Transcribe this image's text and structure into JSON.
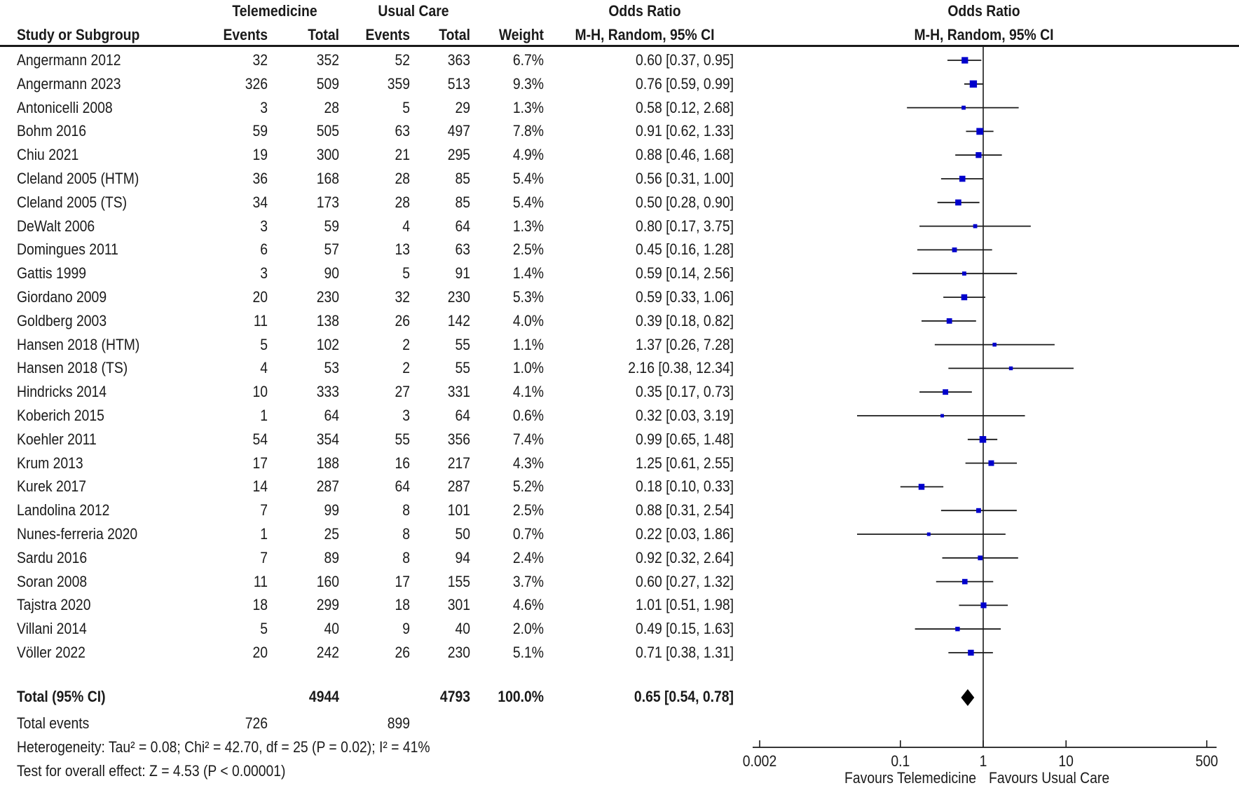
{
  "header": {
    "group1": "Telemedicine",
    "group2": "Usual Care",
    "or_title": "Odds Ratio",
    "plot_title": "Odds Ratio",
    "col_study": "Study or Subgroup",
    "col_events1": "Events",
    "col_total1": "Total",
    "col_events2": "Events",
    "col_total2": "Total",
    "col_weight": "Weight",
    "col_method": "M-H, Random, 95% CI",
    "plot_method": "M-H, Random, 95% CI"
  },
  "studies": [
    {
      "name": "Angermann 2012",
      "e1": "32",
      "n1": "352",
      "e2": "52",
      "n2": "363",
      "weight": "6.7%",
      "ci_text": "0.60 [0.37, 0.95]"
    },
    {
      "name": "Angermann 2023",
      "e1": "326",
      "n1": "509",
      "e2": "359",
      "n2": "513",
      "weight": "9.3%",
      "ci_text": "0.76 [0.59, 0.99]"
    },
    {
      "name": "Antonicelli 2008",
      "e1": "3",
      "n1": "28",
      "e2": "5",
      "n2": "29",
      "weight": "1.3%",
      "ci_text": "0.58 [0.12, 2.68]"
    },
    {
      "name": "Bohm 2016",
      "e1": "59",
      "n1": "505",
      "e2": "63",
      "n2": "497",
      "weight": "7.8%",
      "ci_text": "0.91 [0.62, 1.33]"
    },
    {
      "name": "Chiu 2021",
      "e1": "19",
      "n1": "300",
      "e2": "21",
      "n2": "295",
      "weight": "4.9%",
      "ci_text": "0.88 [0.46, 1.68]"
    },
    {
      "name": "Cleland 2005 (HTM)",
      "e1": "36",
      "n1": "168",
      "e2": "28",
      "n2": "85",
      "weight": "5.4%",
      "ci_text": "0.56 [0.31, 1.00]"
    },
    {
      "name": "Cleland 2005 (TS)",
      "e1": "34",
      "n1": "173",
      "e2": "28",
      "n2": "85",
      "weight": "5.4%",
      "ci_text": "0.50 [0.28, 0.90]"
    },
    {
      "name": "DeWalt 2006",
      "e1": "3",
      "n1": "59",
      "e2": "4",
      "n2": "64",
      "weight": "1.3%",
      "ci_text": "0.80 [0.17, 3.75]"
    },
    {
      "name": "Domingues 2011",
      "e1": "6",
      "n1": "57",
      "e2": "13",
      "n2": "63",
      "weight": "2.5%",
      "ci_text": "0.45 [0.16, 1.28]"
    },
    {
      "name": "Gattis 1999",
      "e1": "3",
      "n1": "90",
      "e2": "5",
      "n2": "91",
      "weight": "1.4%",
      "ci_text": "0.59 [0.14, 2.56]"
    },
    {
      "name": "Giordano 2009",
      "e1": "20",
      "n1": "230",
      "e2": "32",
      "n2": "230",
      "weight": "5.3%",
      "ci_text": "0.59 [0.33, 1.06]"
    },
    {
      "name": "Goldberg 2003",
      "e1": "11",
      "n1": "138",
      "e2": "26",
      "n2": "142",
      "weight": "4.0%",
      "ci_text": "0.39 [0.18, 0.82]"
    },
    {
      "name": "Hansen 2018 (HTM)",
      "e1": "5",
      "n1": "102",
      "e2": "2",
      "n2": "55",
      "weight": "1.1%",
      "ci_text": "1.37 [0.26, 7.28]"
    },
    {
      "name": "Hansen 2018 (TS)",
      "e1": "4",
      "n1": "53",
      "e2": "2",
      "n2": "55",
      "weight": "1.0%",
      "ci_text": "2.16 [0.38, 12.34]"
    },
    {
      "name": "Hindricks 2014",
      "e1": "10",
      "n1": "333",
      "e2": "27",
      "n2": "331",
      "weight": "4.1%",
      "ci_text": "0.35 [0.17, 0.73]"
    },
    {
      "name": "Koberich 2015",
      "e1": "1",
      "n1": "64",
      "e2": "3",
      "n2": "64",
      "weight": "0.6%",
      "ci_text": "0.32 [0.03, 3.19]"
    },
    {
      "name": "Koehler 2011",
      "e1": "54",
      "n1": "354",
      "e2": "55",
      "n2": "356",
      "weight": "7.4%",
      "ci_text": "0.99 [0.65, 1.48]"
    },
    {
      "name": "Krum 2013",
      "e1": "17",
      "n1": "188",
      "e2": "16",
      "n2": "217",
      "weight": "4.3%",
      "ci_text": "1.25 [0.61, 2.55]"
    },
    {
      "name": "Kurek 2017",
      "e1": "14",
      "n1": "287",
      "e2": "64",
      "n2": "287",
      "weight": "5.2%",
      "ci_text": "0.18 [0.10, 0.33]"
    },
    {
      "name": "Landolina 2012",
      "e1": "7",
      "n1": "99",
      "e2": "8",
      "n2": "101",
      "weight": "2.5%",
      "ci_text": "0.88 [0.31, 2.54]"
    },
    {
      "name": "Nunes-ferreria 2020",
      "e1": "1",
      "n1": "25",
      "e2": "8",
      "n2": "50",
      "weight": "0.7%",
      "ci_text": "0.22 [0.03, 1.86]"
    },
    {
      "name": "Sardu 2016",
      "e1": "7",
      "n1": "89",
      "e2": "8",
      "n2": "94",
      "weight": "2.4%",
      "ci_text": "0.92 [0.32, 2.64]"
    },
    {
      "name": "Soran 2008",
      "e1": "11",
      "n1": "160",
      "e2": "17",
      "n2": "155",
      "weight": "3.7%",
      "ci_text": "0.60 [0.27, 1.32]"
    },
    {
      "name": "Tajstra 2020",
      "e1": "18",
      "n1": "299",
      "e2": "18",
      "n2": "301",
      "weight": "4.6%",
      "ci_text": "1.01 [0.51, 1.98]"
    },
    {
      "name": "Villani 2014",
      "e1": "5",
      "n1": "40",
      "e2": "9",
      "n2": "40",
      "weight": "2.0%",
      "ci_text": "0.49 [0.15, 1.63]"
    },
    {
      "name": "Völler 2022",
      "e1": "20",
      "n1": "242",
      "e2": "26",
      "n2": "230",
      "weight": "5.1%",
      "ci_text": "0.71 [0.38, 1.31]"
    }
  ],
  "total": {
    "label": "Total (95% CI)",
    "n1": "4944",
    "n2": "4793",
    "weight": "100.0%",
    "ci_text": "0.65 [0.54, 0.78]"
  },
  "footer": {
    "events_label": "Total events",
    "events1": "726",
    "events2": "899",
    "heterogeneity": "Heterogeneity: Tau² = 0.08; Chi² = 42.70, df = 25 (P = 0.02); I² = 41%",
    "overall": "Test for overall effect: Z = 4.53 (P < 0.00001)"
  },
  "axis": {
    "ticks": [
      "0.002",
      "0.1",
      "1",
      "10",
      "500"
    ],
    "left_label": "Favours Telemedicine",
    "right_label": "Favours Usual Care"
  },
  "colors": {
    "marker": "#0000cc",
    "line": "#1a1a1a",
    "diamond": "#000000"
  },
  "chart_data": {
    "type": "scatter",
    "subtype": "forest-plot",
    "title": "Odds Ratio M-H, Random, 95% CI",
    "xlabel": "Favours Telemedicine | Favours Usual Care",
    "xscale": "log",
    "xlim": [
      0.002,
      500
    ],
    "xticks": [
      0.002,
      0.1,
      1,
      10,
      500
    ],
    "reference_line": 1,
    "grid": false,
    "studies": [
      {
        "name": "Angermann 2012",
        "or": 0.6,
        "lo": 0.37,
        "hi": 0.95,
        "weight": 6.7
      },
      {
        "name": "Angermann 2023",
        "or": 0.76,
        "lo": 0.59,
        "hi": 0.99,
        "weight": 9.3
      },
      {
        "name": "Antonicelli 2008",
        "or": 0.58,
        "lo": 0.12,
        "hi": 2.68,
        "weight": 1.3
      },
      {
        "name": "Bohm 2016",
        "or": 0.91,
        "lo": 0.62,
        "hi": 1.33,
        "weight": 7.8
      },
      {
        "name": "Chiu 2021",
        "or": 0.88,
        "lo": 0.46,
        "hi": 1.68,
        "weight": 4.9
      },
      {
        "name": "Cleland 2005 (HTM)",
        "or": 0.56,
        "lo": 0.31,
        "hi": 1.0,
        "weight": 5.4
      },
      {
        "name": "Cleland 2005 (TS)",
        "or": 0.5,
        "lo": 0.28,
        "hi": 0.9,
        "weight": 5.4
      },
      {
        "name": "DeWalt 2006",
        "or": 0.8,
        "lo": 0.17,
        "hi": 3.75,
        "weight": 1.3
      },
      {
        "name": "Domingues 2011",
        "or": 0.45,
        "lo": 0.16,
        "hi": 1.28,
        "weight": 2.5
      },
      {
        "name": "Gattis 1999",
        "or": 0.59,
        "lo": 0.14,
        "hi": 2.56,
        "weight": 1.4
      },
      {
        "name": "Giordano 2009",
        "or": 0.59,
        "lo": 0.33,
        "hi": 1.06,
        "weight": 5.3
      },
      {
        "name": "Goldberg 2003",
        "or": 0.39,
        "lo": 0.18,
        "hi": 0.82,
        "weight": 4.0
      },
      {
        "name": "Hansen 2018 (HTM)",
        "or": 1.37,
        "lo": 0.26,
        "hi": 7.28,
        "weight": 1.1
      },
      {
        "name": "Hansen 2018 (TS)",
        "or": 2.16,
        "lo": 0.38,
        "hi": 12.34,
        "weight": 1.0
      },
      {
        "name": "Hindricks 2014",
        "or": 0.35,
        "lo": 0.17,
        "hi": 0.73,
        "weight": 4.1
      },
      {
        "name": "Koberich 2015",
        "or": 0.32,
        "lo": 0.03,
        "hi": 3.19,
        "weight": 0.6
      },
      {
        "name": "Koehler 2011",
        "or": 0.99,
        "lo": 0.65,
        "hi": 1.48,
        "weight": 7.4
      },
      {
        "name": "Krum 2013",
        "or": 1.25,
        "lo": 0.61,
        "hi": 2.55,
        "weight": 4.3
      },
      {
        "name": "Kurek 2017",
        "or": 0.18,
        "lo": 0.1,
        "hi": 0.33,
        "weight": 5.2
      },
      {
        "name": "Landolina 2012",
        "or": 0.88,
        "lo": 0.31,
        "hi": 2.54,
        "weight": 2.5
      },
      {
        "name": "Nunes-ferreria 2020",
        "or": 0.22,
        "lo": 0.03,
        "hi": 1.86,
        "weight": 0.7
      },
      {
        "name": "Sardu 2016",
        "or": 0.92,
        "lo": 0.32,
        "hi": 2.64,
        "weight": 2.4
      },
      {
        "name": "Soran 2008",
        "or": 0.6,
        "lo": 0.27,
        "hi": 1.32,
        "weight": 3.7
      },
      {
        "name": "Tajstra 2020",
        "or": 1.01,
        "lo": 0.51,
        "hi": 1.98,
        "weight": 4.6
      },
      {
        "name": "Villani 2014",
        "or": 0.49,
        "lo": 0.15,
        "hi": 1.63,
        "weight": 2.0
      },
      {
        "name": "Völler 2022",
        "or": 0.71,
        "lo": 0.38,
        "hi": 1.31,
        "weight": 5.1
      }
    ],
    "pooled": {
      "name": "Total (95% CI)",
      "or": 0.65,
      "lo": 0.54,
      "hi": 0.78,
      "weight": 100.0
    }
  }
}
